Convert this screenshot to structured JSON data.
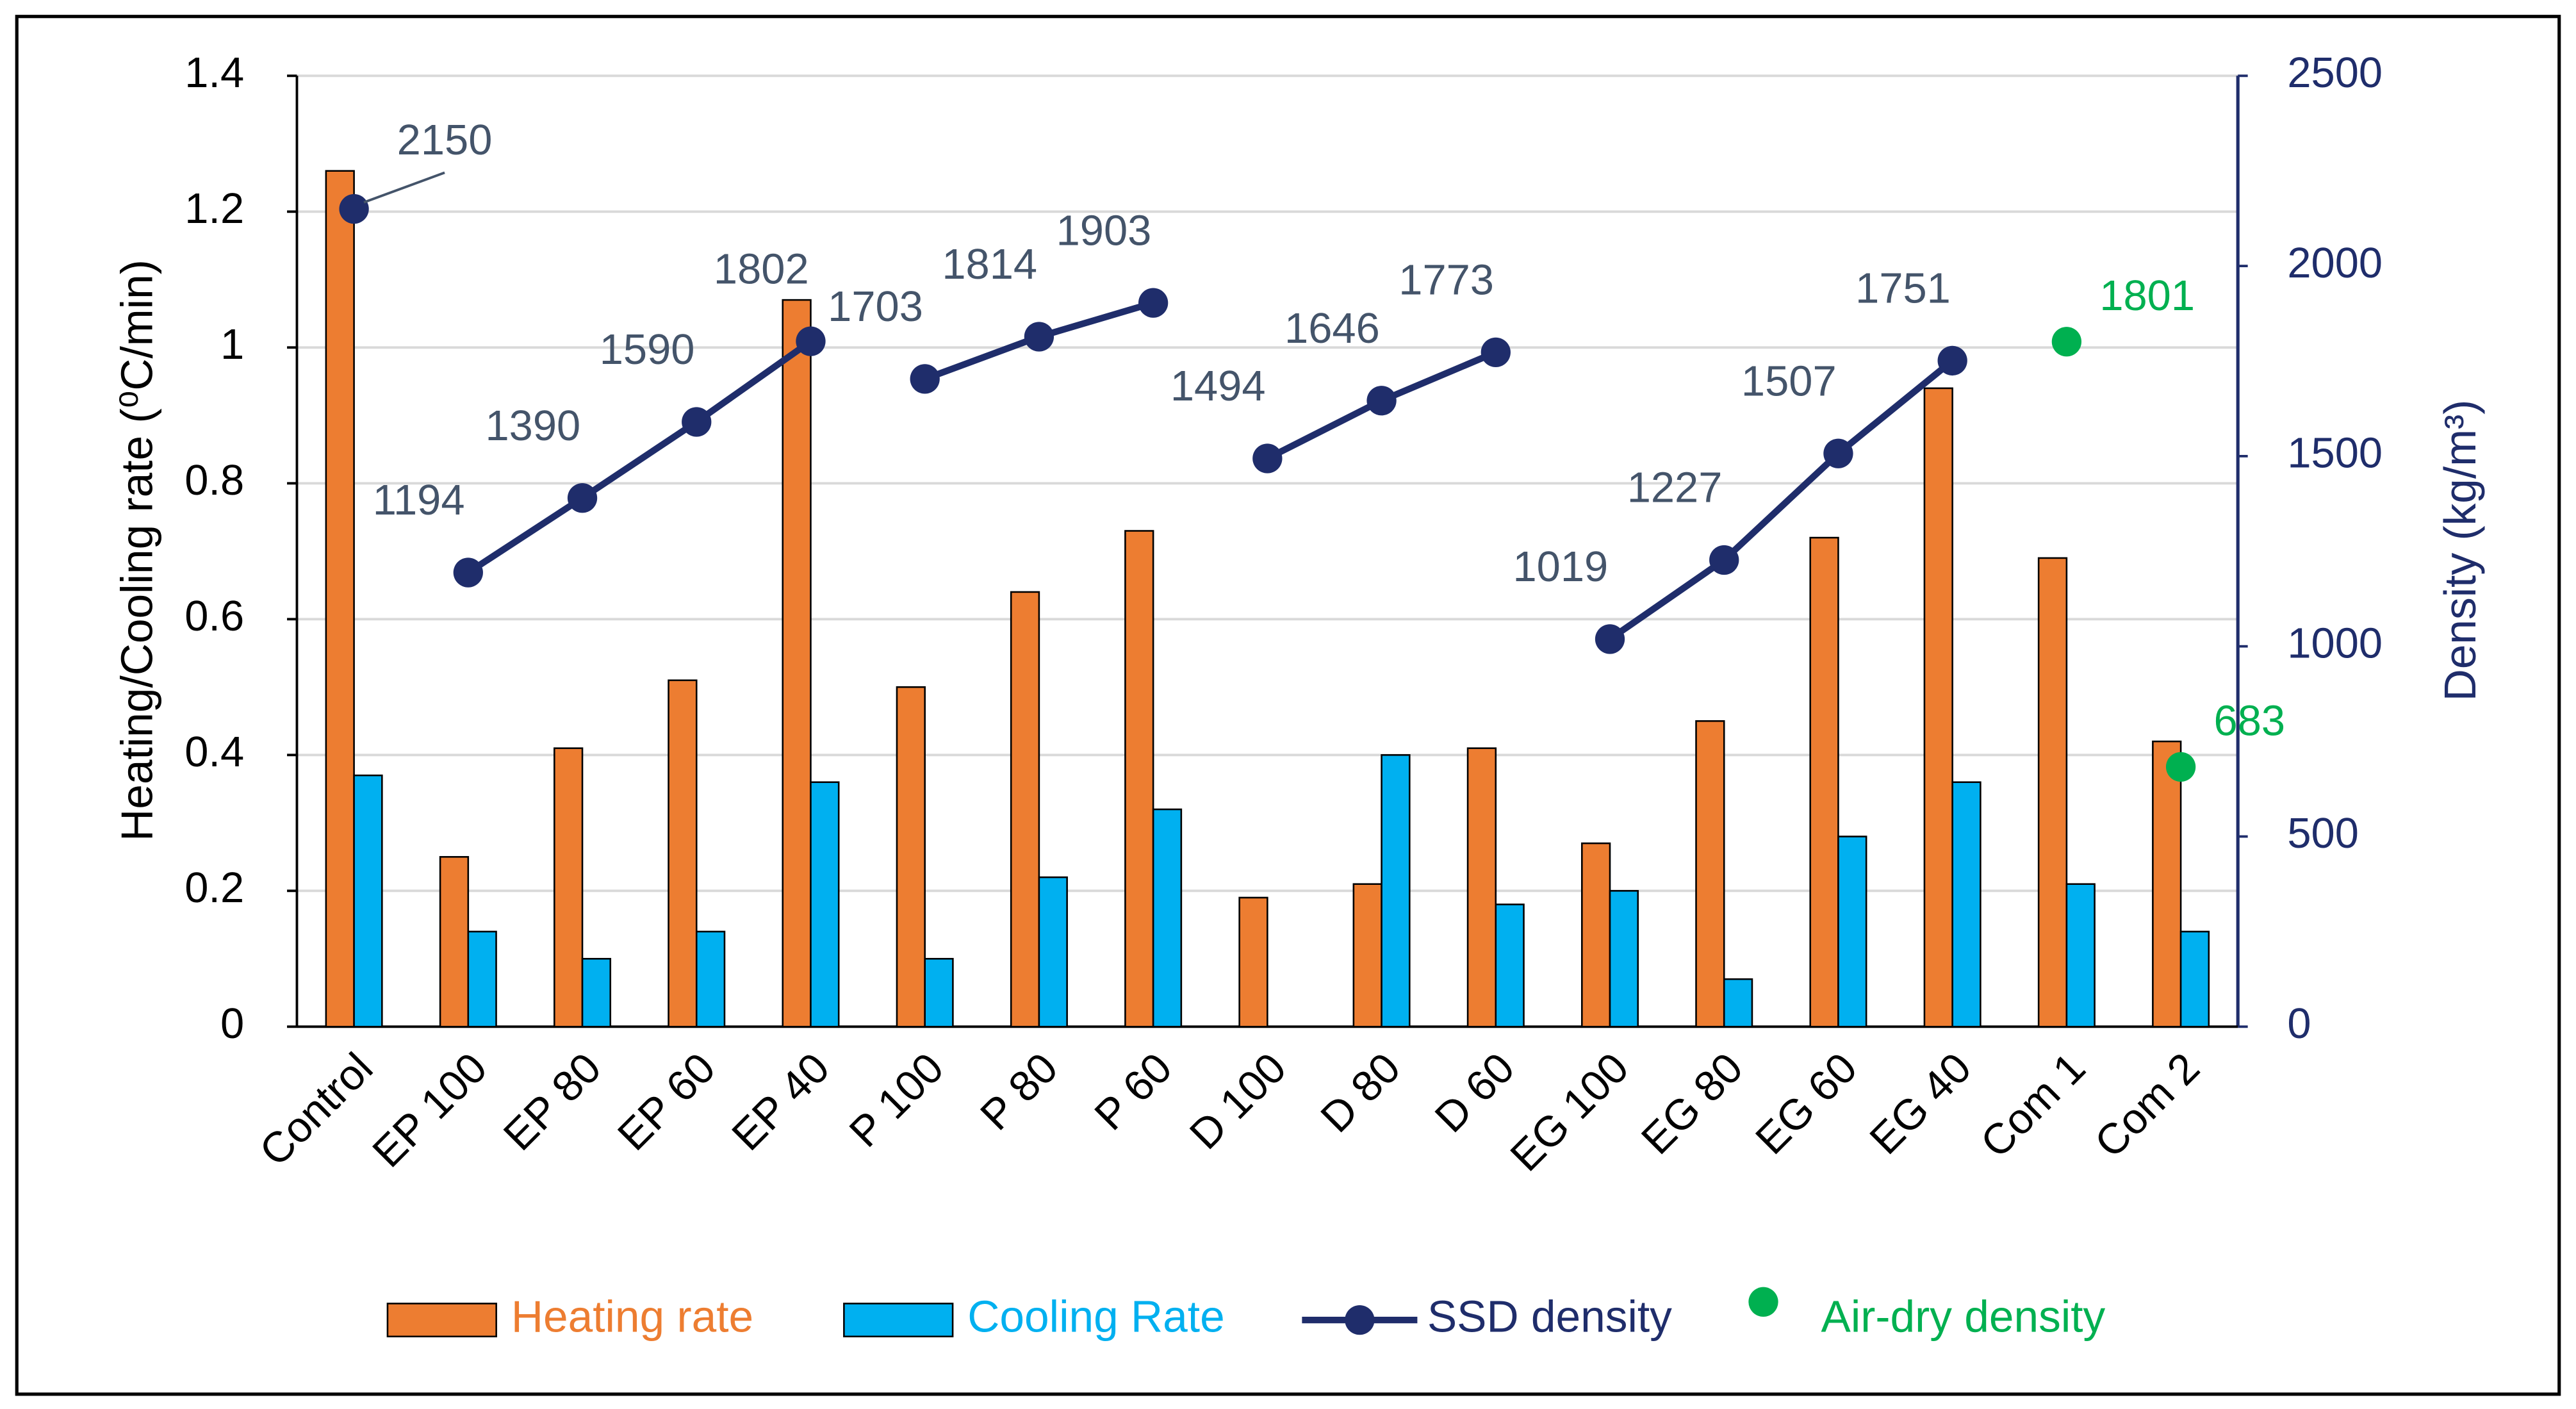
{
  "chart_data": {
    "type": "bar",
    "categories": [
      "Control",
      "EP 100",
      "EP 80",
      "EP 60",
      "EP 40",
      "P 100",
      "P 80",
      "P 60",
      "D 100",
      "D 80",
      "D 60",
      "EG 100",
      "EG 80",
      "EG 60",
      "EG 40",
      "Com 1",
      "Com 2"
    ],
    "series": [
      {
        "name": "Heating rate",
        "color": "#ed7d31",
        "type": "bar",
        "values": [
          1.26,
          0.25,
          0.41,
          0.51,
          1.07,
          0.5,
          0.64,
          0.73,
          0.19,
          0.21,
          0.41,
          0.27,
          0.45,
          0.72,
          0.94,
          0.69,
          0.42
        ]
      },
      {
        "name": "Cooling Rate",
        "color": "#00b0f0",
        "type": "bar",
        "values": [
          0.37,
          0.14,
          0.1,
          0.14,
          0.36,
          0.1,
          0.22,
          0.32,
          null,
          0.4,
          0.18,
          0.2,
          0.07,
          0.28,
          0.36,
          0.21,
          0.14
        ]
      },
      {
        "name": "SSD density",
        "color": "#1f2d6b",
        "type": "line",
        "axis": "y2",
        "label_color": "#44546a",
        "breaks_after": [
          0,
          4,
          7,
          10
        ],
        "values": [
          2150,
          1194,
          1390,
          1590,
          1802,
          1703,
          1814,
          1903,
          1494,
          1646,
          1773,
          1019,
          1227,
          1507,
          1751,
          null,
          null
        ]
      },
      {
        "name": "Air-dry density",
        "color": "#00b050",
        "type": "scatter",
        "axis": "y2",
        "values": [
          null,
          null,
          null,
          null,
          null,
          null,
          null,
          null,
          null,
          null,
          null,
          null,
          null,
          null,
          null,
          1801,
          683
        ]
      }
    ],
    "ylabel": "Heating/Cooling rate (⁰C/min)",
    "y2label": "Density (kg/m³)",
    "ylim": [
      0,
      1.4
    ],
    "yticks": [
      0,
      0.2,
      0.4,
      0.6,
      0.8,
      1,
      1.2,
      1.4
    ],
    "y2lim": [
      0,
      2500
    ],
    "y2ticks": [
      0,
      500,
      1000,
      1500,
      2000,
      2500
    ],
    "grid": true,
    "legend": "bottom"
  }
}
